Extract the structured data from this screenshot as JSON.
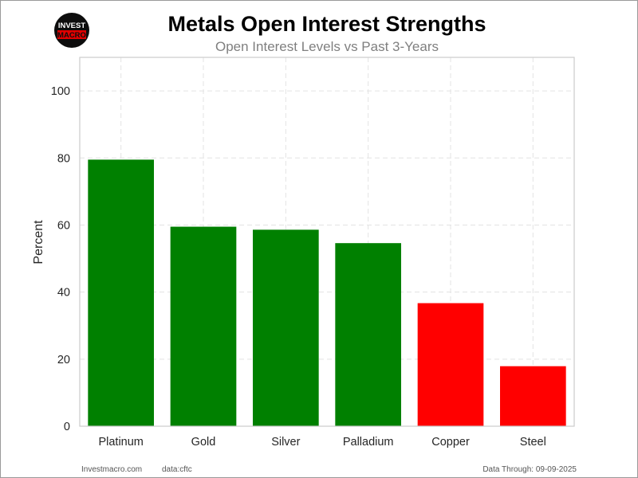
{
  "logo": {
    "line1": "INVEST",
    "line2": "MACRO"
  },
  "footer": {
    "site": "Investmacro.com",
    "source": "data:cftc",
    "through": "Data Through: 09-09-2025"
  },
  "chart_data": {
    "type": "bar",
    "title": "Metals Open Interest Strengths",
    "subtitle": "Open Interest Levels vs Past 3-Years",
    "xlabel": "",
    "ylabel": "Percent",
    "categories": [
      "Platinum",
      "Gold",
      "Silver",
      "Palladium",
      "Copper",
      "Steel"
    ],
    "values": [
      79.5,
      59.5,
      58.6,
      54.6,
      36.7,
      17.9
    ],
    "bar_colors": [
      "#008000",
      "#008000",
      "#008000",
      "#008000",
      "#ff0000",
      "#ff0000"
    ],
    "ylim": [
      0,
      110
    ],
    "yticks": [
      0,
      20,
      40,
      60,
      80,
      100
    ],
    "grid": true,
    "legend": false
  }
}
